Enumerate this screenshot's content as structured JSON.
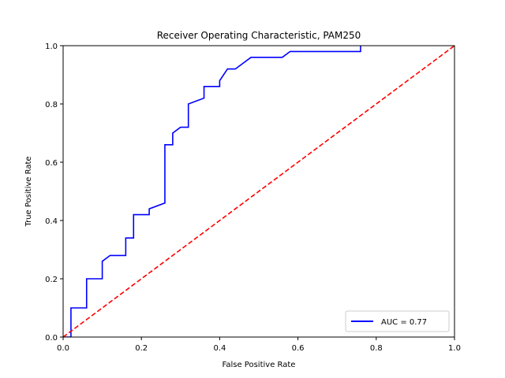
{
  "chart_data": {
    "type": "line",
    "title": "Receiver Operating Characteristic, PAM250",
    "xlabel": "False Positive Rate",
    "ylabel": "True Positive Rate",
    "xlim": [
      0,
      1
    ],
    "ylim": [
      0,
      1
    ],
    "x_ticks": [
      "0.0",
      "0.2",
      "0.4",
      "0.6",
      "0.8",
      "1.0"
    ],
    "y_ticks": [
      "0.0",
      "0.2",
      "0.4",
      "0.6",
      "0.8",
      "1.0"
    ],
    "grid": false,
    "legend_position": "lower-right",
    "series": [
      {
        "name": "AUC = 0.77",
        "color": "#0000ff",
        "style": "solid",
        "x": [
          0,
          0.02,
          0.02,
          0.06,
          0.06,
          0.1,
          0.1,
          0.12,
          0.16,
          0.16,
          0.18,
          0.18,
          0.22,
          0.22,
          0.26,
          0.26,
          0.28,
          0.28,
          0.3,
          0.32,
          0.32,
          0.36,
          0.36,
          0.4,
          0.4,
          0.42,
          0.44,
          0.48,
          0.56,
          0.58,
          0.76,
          0.76
        ],
        "y": [
          0,
          0,
          0.1,
          0.1,
          0.2,
          0.2,
          0.26,
          0.28,
          0.28,
          0.34,
          0.34,
          0.42,
          0.42,
          0.44,
          0.46,
          0.66,
          0.66,
          0.7,
          0.72,
          0.72,
          0.8,
          0.82,
          0.86,
          0.86,
          0.88,
          0.92,
          0.92,
          0.96,
          0.96,
          0.98,
          0.98,
          1.0
        ]
      },
      {
        "name": "",
        "color": "#ff0000",
        "style": "dashed",
        "x": [
          0,
          1
        ],
        "y": [
          0,
          1
        ]
      }
    ]
  }
}
